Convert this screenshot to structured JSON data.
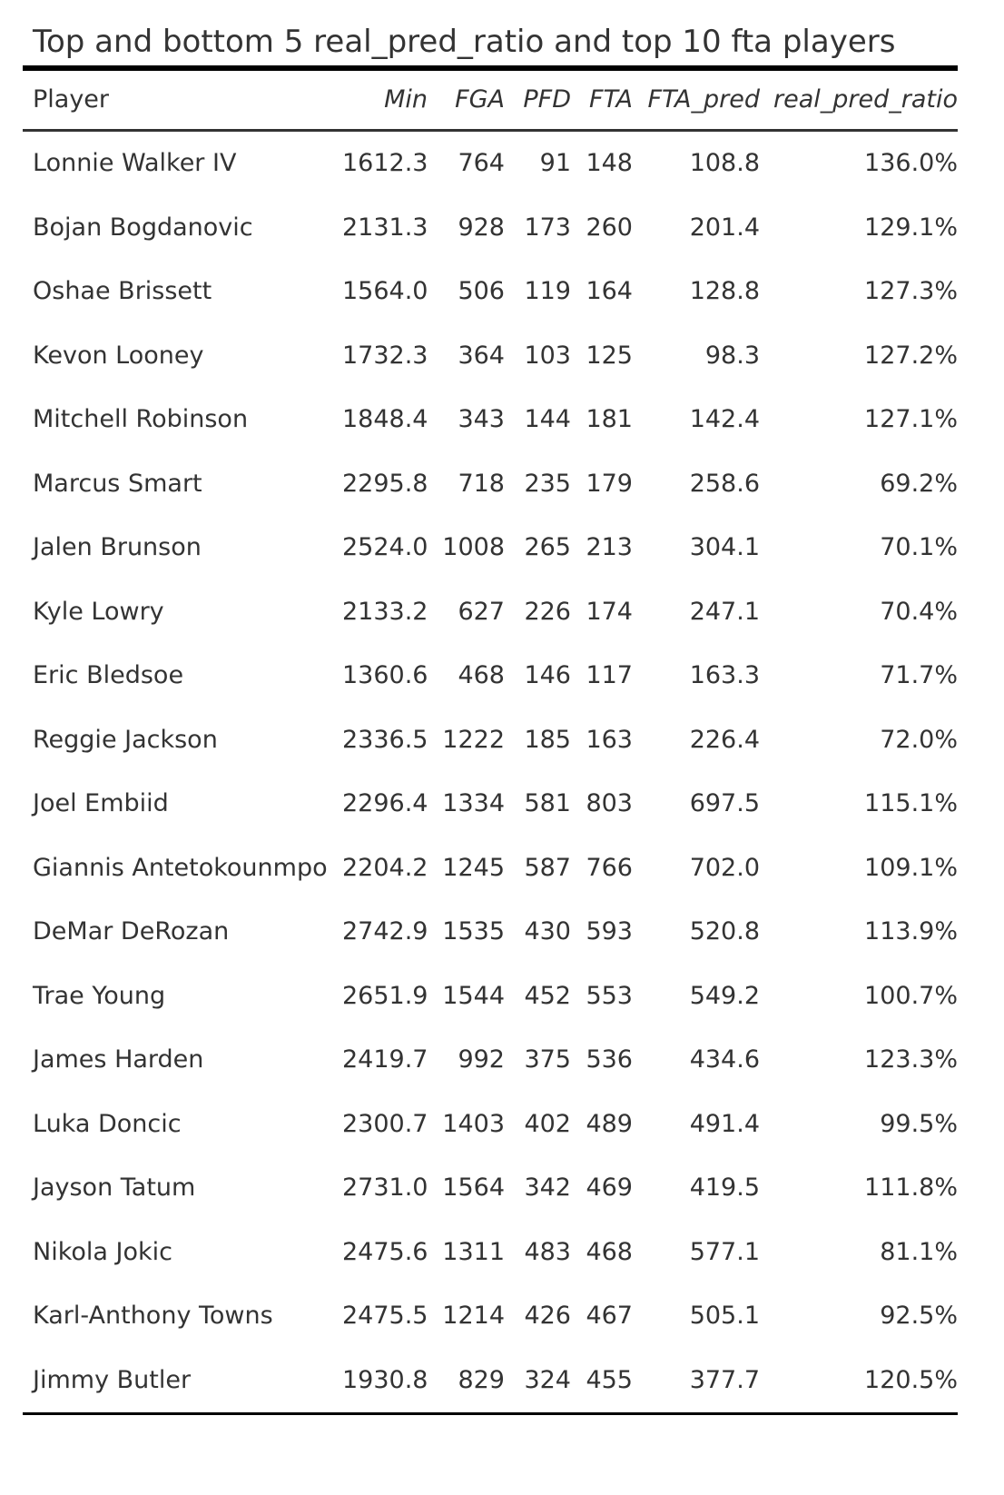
{
  "title": "Top and bottom 5 real_pred_ratio and top 10 fta players",
  "columns": [
    "Player",
    "Min",
    "FGA",
    "PFD",
    "FTA",
    "FTA_pred",
    "real_pred_ratio"
  ],
  "rows": [
    [
      "Lonnie Walker IV",
      "1612.3",
      "764",
      "91",
      "148",
      "108.8",
      "136.0%"
    ],
    [
      "Bojan Bogdanovic",
      "2131.3",
      "928",
      "173",
      "260",
      "201.4",
      "129.1%"
    ],
    [
      "Oshae Brissett",
      "1564.0",
      "506",
      "119",
      "164",
      "128.8",
      "127.3%"
    ],
    [
      "Kevon Looney",
      "1732.3",
      "364",
      "103",
      "125",
      "98.3",
      "127.2%"
    ],
    [
      "Mitchell Robinson",
      "1848.4",
      "343",
      "144",
      "181",
      "142.4",
      "127.1%"
    ],
    [
      "Marcus Smart",
      "2295.8",
      "718",
      "235",
      "179",
      "258.6",
      "69.2%"
    ],
    [
      "Jalen Brunson",
      "2524.0",
      "1008",
      "265",
      "213",
      "304.1",
      "70.1%"
    ],
    [
      "Kyle Lowry",
      "2133.2",
      "627",
      "226",
      "174",
      "247.1",
      "70.4%"
    ],
    [
      "Eric Bledsoe",
      "1360.6",
      "468",
      "146",
      "117",
      "163.3",
      "71.7%"
    ],
    [
      "Reggie Jackson",
      "2336.5",
      "1222",
      "185",
      "163",
      "226.4",
      "72.0%"
    ],
    [
      "Joel Embiid",
      "2296.4",
      "1334",
      "581",
      "803",
      "697.5",
      "115.1%"
    ],
    [
      "Giannis Antetokounmpo",
      "2204.2",
      "1245",
      "587",
      "766",
      "702.0",
      "109.1%"
    ],
    [
      "DeMar DeRozan",
      "2742.9",
      "1535",
      "430",
      "593",
      "520.8",
      "113.9%"
    ],
    [
      "Trae Young",
      "2651.9",
      "1544",
      "452",
      "553",
      "549.2",
      "100.7%"
    ],
    [
      "James Harden",
      "2419.7",
      "992",
      "375",
      "536",
      "434.6",
      "123.3%"
    ],
    [
      "Luka Doncic",
      "2300.7",
      "1403",
      "402",
      "489",
      "491.4",
      "99.5%"
    ],
    [
      "Jayson Tatum",
      "2731.0",
      "1564",
      "342",
      "469",
      "419.5",
      "111.8%"
    ],
    [
      "Nikola Jokic",
      "2475.6",
      "1311",
      "483",
      "468",
      "577.1",
      "81.1%"
    ],
    [
      "Karl-Anthony Towns",
      "2475.5",
      "1214",
      "426",
      "467",
      "505.1",
      "92.5%"
    ],
    [
      "Jimmy Butler",
      "1930.8",
      "829",
      "324",
      "455",
      "377.7",
      "120.5%"
    ]
  ]
}
